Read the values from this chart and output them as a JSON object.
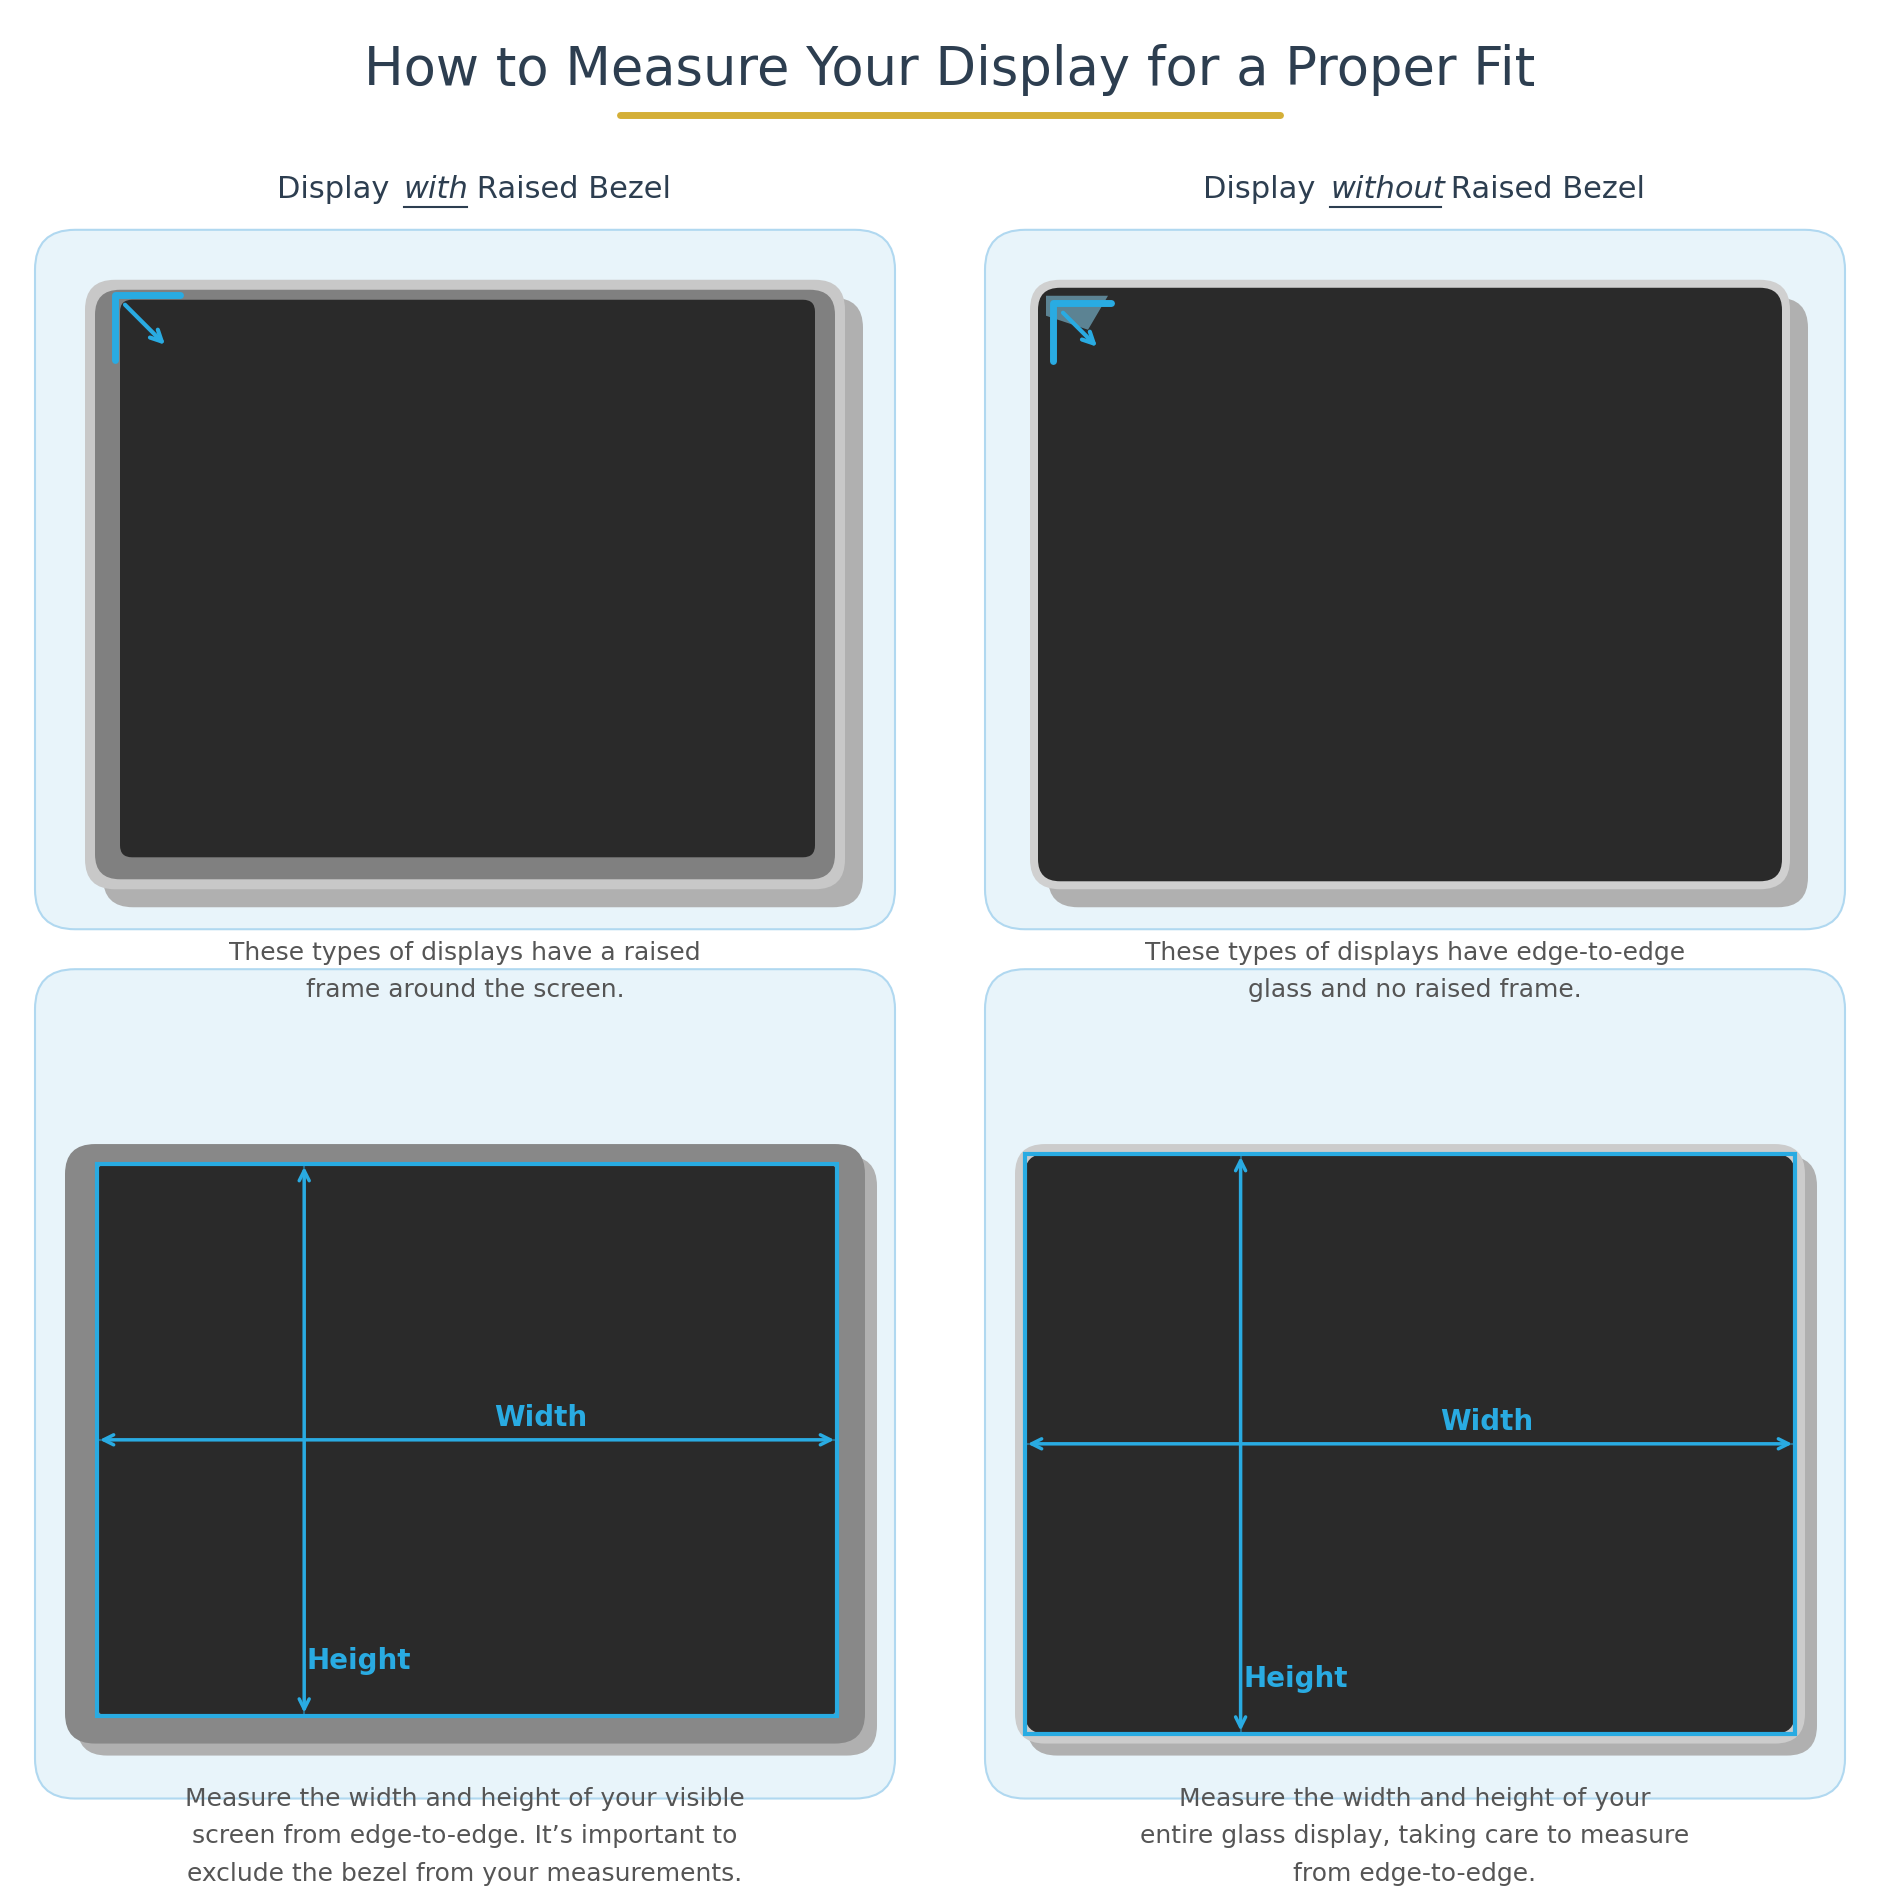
{
  "title": "How to Measure Your Display for a Proper Fit",
  "title_color": "#2d3e50",
  "title_fontsize": 38,
  "gold_line_color": "#d4af37",
  "background_color": "#ffffff",
  "panel_bg_color": "#e8f4fa",
  "panel_border_color": "#b0d8f0",
  "subtitle_color": "#2d3e50",
  "subtitle_fontsize": 22,
  "arrow_color": "#29abe2",
  "width_label": "Width",
  "height_label": "Height",
  "measure_label_color": "#29abe2",
  "measure_label_fontsize": 20,
  "desc_left_top": "These types of displays have a raised\nframe around the screen.",
  "desc_right_top": "These types of displays have edge-to-edge\nglass and no raised frame.",
  "desc_left_bottom": "Measure the width and height of your visible\nscreen from edge-to-edge. It’s important to\nexclude the bezel from your measurements.",
  "desc_right_bottom": "Measure the width and height of your\nentire glass display, taking care to measure\nfrom edge-to-edge.",
  "desc_color": "#555555",
  "desc_fontsize": 18
}
